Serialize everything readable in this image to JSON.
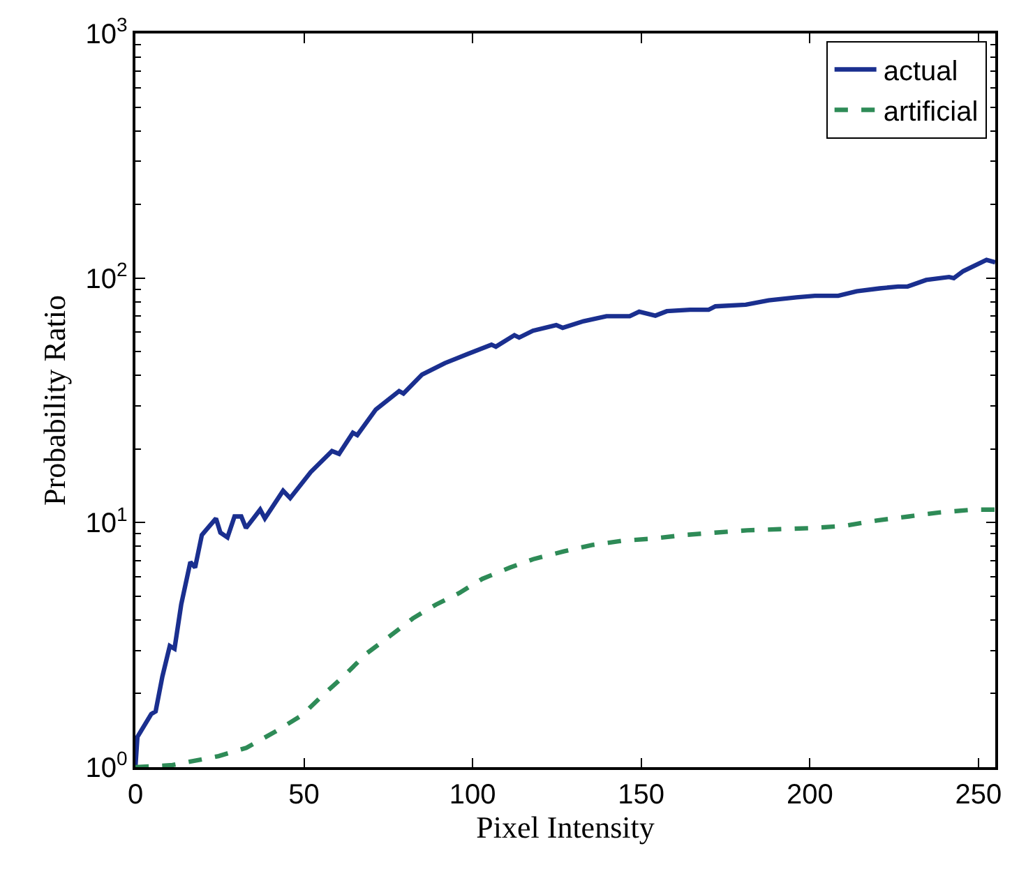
{
  "chart_data": {
    "type": "line",
    "xlabel": "Pixel Intensity",
    "ylabel": "Probability Ratio",
    "log": "y",
    "grid": false,
    "legend": "top right",
    "xlim": [
      0,
      255
    ],
    "xticks": [
      0,
      50,
      100,
      150,
      200,
      250
    ],
    "ylim": [
      1,
      1000
    ],
    "yticks": [
      {
        "value": 1,
        "label": "10$^{0}$"
      },
      {
        "value": 10,
        "label": "10$^{1}$"
      },
      {
        "value": 100,
        "label": "10$^{2}$"
      },
      {
        "value": 1000,
        "label": "10$^{3}$"
      }
    ],
    "series": [
      {
        "name": "actual",
        "color": "#1a2f8f",
        "line_style": "solid",
        "x": [
          0,
          0.6,
          4.7,
          6,
          8,
          10.2,
          11.6,
          13.6,
          16.3,
          17.7,
          19.7,
          23.9,
          25.2,
          27.3,
          29.4,
          31.4,
          32.8,
          37,
          38.4,
          43.8,
          45.9,
          52,
          58.3,
          60.4,
          64.5,
          65.8,
          71.3,
          78.2,
          79.5,
          85,
          91.8,
          98.7,
          105.6,
          106.9,
          112.4,
          113.8,
          117.9,
          124.8,
          126.7,
          132.9,
          139.7,
          146.6,
          149.4,
          154.2,
          157.6,
          164.5,
          170,
          172,
          181,
          187.8,
          196,
          201.5,
          208.4,
          213.9,
          220.7,
          226.2,
          229,
          234.5,
          241.3,
          242.7,
          245.5,
          252.4,
          255
        ],
        "values": [
          1.0,
          1.33,
          1.65,
          1.69,
          2.35,
          3.13,
          3.05,
          4.64,
          6.9,
          6.55,
          8.9,
          10.4,
          9.1,
          8.7,
          10.6,
          10.6,
          9.5,
          11.3,
          10.4,
          13.5,
          12.6,
          16.1,
          19.6,
          19.1,
          23.3,
          22.8,
          29,
          34.5,
          33.7,
          40.3,
          44.9,
          49,
          53.4,
          52.4,
          58.4,
          57.1,
          60.9,
          64.2,
          62.6,
          66.6,
          69.8,
          69.8,
          72.9,
          70.2,
          73.2,
          74.2,
          74.2,
          76.6,
          77.8,
          81.1,
          83.4,
          84.6,
          84.6,
          88.3,
          90.7,
          92.3,
          92.3,
          98.2,
          101,
          99.9,
          106.7,
          118.7,
          116
        ]
      },
      {
        "name": "artificial",
        "color": "#2e8b57",
        "line_style": "dashed",
        "x": [
          0,
          11,
          24.7,
          32.9,
          41.2,
          49.4,
          54.9,
          61.7,
          68.6,
          75.4,
          82.3,
          89.1,
          96,
          102.9,
          111.1,
          118,
          127,
          135.5,
          144.4,
          153.3,
          162.9,
          171.8,
          181.4,
          191,
          200.6,
          210.2,
          219.8,
          229.4,
          238.3,
          248.6,
          255
        ],
        "values": [
          1.0,
          1.02,
          1.11,
          1.2,
          1.39,
          1.63,
          1.93,
          2.35,
          2.92,
          3.43,
          4.06,
          4.62,
          5.15,
          5.89,
          6.55,
          7.09,
          7.62,
          8.1,
          8.43,
          8.6,
          8.9,
          9.1,
          9.3,
          9.4,
          9.5,
          9.7,
          10.2,
          10.6,
          11.0,
          11.3,
          11.3
        ]
      }
    ]
  }
}
